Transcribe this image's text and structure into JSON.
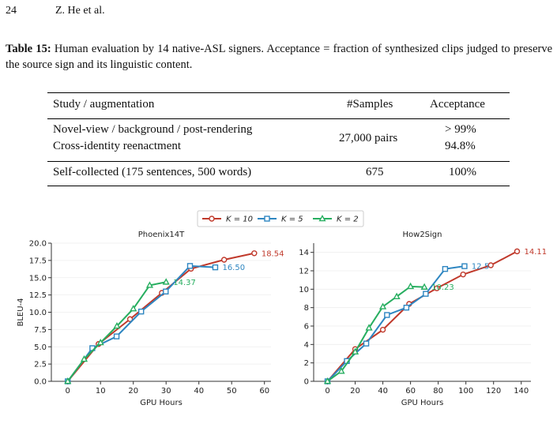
{
  "header": {
    "page": "24",
    "authors": "Z. He et al."
  },
  "caption": {
    "label": "Table 15:",
    "text": "Human evaluation by 14 native-ASL signers. Acceptance = fraction of synthesized clips judged to preserve the source sign and its linguistic content."
  },
  "table": {
    "columns": [
      "Study / augmentation",
      "#Samples",
      "Acceptance"
    ],
    "rows": [
      {
        "studies": [
          "Novel-view / background / post-rendering",
          "Cross-identity reenactment"
        ],
        "samples": "27,000 pairs",
        "acceptance": [
          "> 99%",
          "94.8%"
        ]
      },
      {
        "studies": [
          "Self-collected (175 sentences, 500 words)"
        ],
        "samples": "675",
        "acceptance": [
          "100%"
        ]
      }
    ]
  },
  "chart_data": [
    {
      "type": "line",
      "title": "Phoenix14T",
      "x_label": "GPU Hours",
      "y_label": "BLEU-4",
      "grid": true,
      "xlim": [
        -5,
        62
      ],
      "ylim": [
        0,
        20
      ],
      "xticks": [
        0,
        10,
        20,
        30,
        40,
        50,
        60
      ],
      "yticks": [
        {
          "value": 0,
          "label": "0.0"
        },
        2.5,
        {
          "value": 5,
          "label": "5.0"
        },
        7.5,
        {
          "value": 10,
          "label": "10.0"
        },
        12.5,
        {
          "value": 15,
          "label": "15.0"
        },
        17.5,
        {
          "value": 20,
          "label": "20.0"
        }
      ],
      "series": [
        {
          "name": "K = 10",
          "color": "#c0392b",
          "marker": "circle",
          "x": [
            0,
            9.4,
            19,
            28.7,
            37.6,
            47.7,
            56.9
          ],
          "values": [
            0,
            5.4,
            9.0,
            12.8,
            16.3,
            17.6,
            18.54
          ]
        },
        {
          "name": "K = 5",
          "color": "#2e86c1",
          "marker": "square",
          "x": [
            0,
            7.5,
            14.9,
            22.4,
            29.9,
            37.3,
            45
          ],
          "values": [
            0,
            4.8,
            6.5,
            10.1,
            13.0,
            16.7,
            16.5
          ],
          "value_labels": [
            null,
            null,
            null,
            null,
            null,
            null,
            "16.50"
          ]
        },
        {
          "name": "K = 2",
          "color": "#27ae60",
          "marker": "triangle",
          "x": [
            0,
            5,
            10,
            15,
            20,
            25,
            30
          ],
          "values": [
            0,
            3.2,
            5.6,
            8.0,
            10.5,
            13.9,
            14.37
          ]
        }
      ]
    },
    {
      "type": "line",
      "title": "How2Sign",
      "x_label": "GPU Hours",
      "grid": true,
      "xlim": [
        -10,
        147
      ],
      "ylim": [
        0,
        15
      ],
      "xticks": [
        0,
        20,
        40,
        60,
        80,
        100,
        120,
        140
      ],
      "yticks": [
        0,
        2,
        4,
        6,
        8,
        10,
        12,
        14
      ],
      "series": [
        {
          "name": "K = 10",
          "color": "#c0392b",
          "marker": "circle",
          "x": [
            0,
            20,
            40,
            59,
            79,
            98,
            118,
            137
          ],
          "values": [
            0,
            3.5,
            5.6,
            8.4,
            10.1,
            11.6,
            12.6,
            14.11
          ]
        },
        {
          "name": "K = 5",
          "color": "#2e86c1",
          "marker": "square",
          "x": [
            0,
            14,
            28,
            43,
            57,
            71,
            85,
            99
          ],
          "values": [
            0,
            2.2,
            4.1,
            7.2,
            8.0,
            9.5,
            12.2,
            12.5
          ]
        },
        {
          "name": "K = 2",
          "color": "#27ae60",
          "marker": "triangle",
          "x": [
            0,
            10,
            20,
            30,
            40,
            50,
            60,
            70
          ],
          "values": [
            0,
            1.1,
            3.2,
            5.8,
            8.1,
            9.2,
            10.3,
            10.23
          ]
        }
      ]
    }
  ]
}
